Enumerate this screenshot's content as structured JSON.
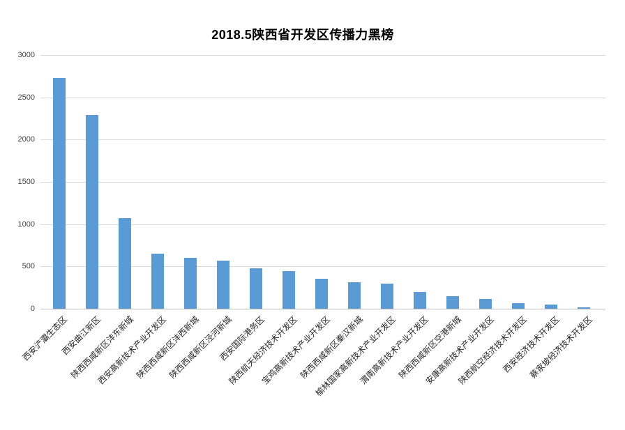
{
  "chart_data": {
    "type": "bar",
    "title": "2018.5陕西省开发区传播力黑榜",
    "categories": [
      "西安浐灞生态区",
      "西安曲江新区",
      "陕西西咸新区沣东新城",
      "西安高新技术产业开发区",
      "陕西西咸新区沣西新城",
      "陕西西咸新区泾河新城",
      "西安国际港务区",
      "陕西航天经济技术开发区",
      "宝鸡高新技术产业开发区",
      "陕西西咸新区秦汉新城",
      "榆林国家高新技术产业开发区",
      "渭南高新技术产业开发区",
      "陕西西咸新区空港新城",
      "安康高新技术产业开发区",
      "陕西航空经济技术开发区",
      "西安经济技术开发区",
      "蔡家坡经济技术开发区"
    ],
    "values": [
      2730,
      2290,
      1070,
      650,
      605,
      570,
      480,
      445,
      355,
      310,
      295,
      200,
      150,
      115,
      65,
      50,
      20
    ],
    "xlabel": "",
    "ylabel": "",
    "ylim": [
      0,
      3000
    ],
    "yticks": [
      0,
      500,
      1000,
      1500,
      2000,
      2500,
      3000
    ],
    "grid": "horizontal",
    "legend": "none",
    "bar_color": "#5B9BD5",
    "gridline_color": "#D9D9D9",
    "axis_line_color": "#BFBFBF",
    "tick_label_color": "#404040",
    "category_label_color": "#262626",
    "title_color": "#000000"
  }
}
